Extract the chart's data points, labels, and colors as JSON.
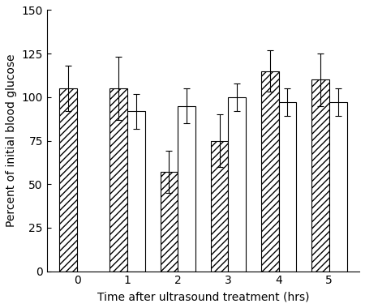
{
  "x_positions": [
    0,
    1,
    2,
    3,
    4,
    5
  ],
  "x_labels": [
    "0",
    "1",
    "2",
    "3",
    "4",
    "5"
  ],
  "xlabel": "Time after ultrasound treatment (hrs)",
  "ylabel": "Percent of initial blood glucose",
  "ylim": [
    0,
    150
  ],
  "yticks": [
    0,
    25,
    50,
    75,
    100,
    125,
    150
  ],
  "filled_values": [
    105.0,
    105.0,
    57.0,
    75.0,
    115.0,
    110.0
  ],
  "filled_errors": [
    13.0,
    18.0,
    12.0,
    15.0,
    12.0,
    15.0
  ],
  "open_values": [
    null,
    92.0,
    95.0,
    100.0,
    97.0,
    97.0
  ],
  "open_errors": [
    null,
    10.0,
    10.0,
    8.0,
    8.0,
    8.0
  ],
  "bar_width": 0.35,
  "hatch_pattern": "////",
  "background_color": "#ffffff",
  "bar_edge_color": "#000000",
  "filled_face_color": "#000000",
  "open_face_color": "#ffffff",
  "figure_width": 4.5,
  "figure_height": 3.8,
  "fontsize": 10,
  "tick_fontsize": 10,
  "label_fontsize": 10
}
